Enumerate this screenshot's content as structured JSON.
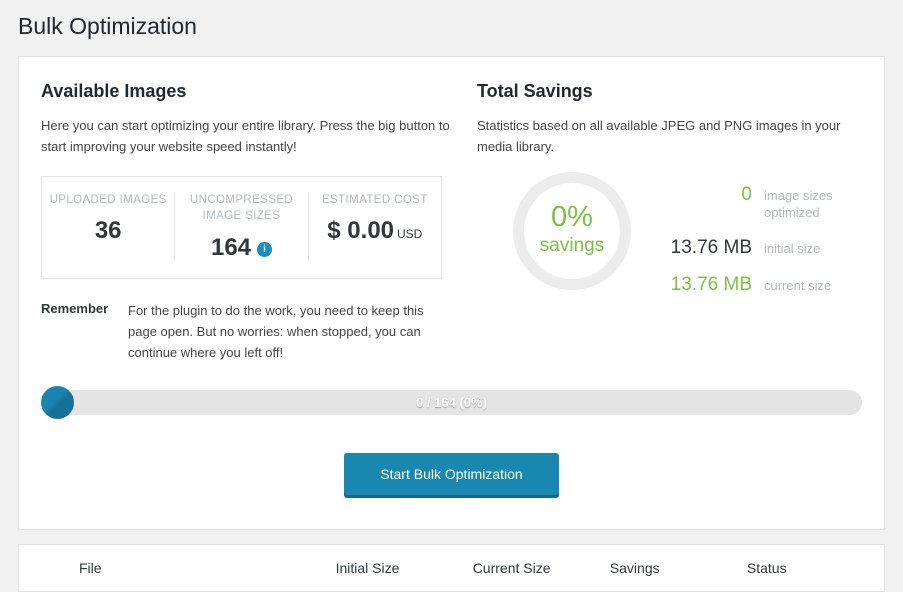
{
  "page": {
    "title": "Bulk Optimization"
  },
  "available_images": {
    "heading": "Available Images",
    "description": "Here you can start optimizing your entire library. Press the big button to start improving your website speed instantly!",
    "stats": [
      {
        "label": "UPLOADED IMAGES",
        "value": "36"
      },
      {
        "label": "UNCOMPRESSED IMAGE SIZES",
        "value": "164"
      },
      {
        "label": "ESTIMATED COST",
        "value": "$ 0.00",
        "unit": "USD"
      }
    ],
    "remember_label": "Remember",
    "remember_text": "For the plugin to do the work, you need to keep this page open. But no worries: when stopped, you can continue where you left off!"
  },
  "total_savings": {
    "heading": "Total Savings",
    "description": "Statistics based on all available JPEG and PNG images in your media library.",
    "ring": {
      "percent": "0%",
      "label": "savings"
    },
    "stats": [
      {
        "value": "0",
        "label": "image sizes optimized"
      },
      {
        "value": "13.76 MB",
        "label": "initial size"
      },
      {
        "value": "13.76 MB",
        "label": "current size"
      }
    ]
  },
  "progress": {
    "text": "0 / 164 (0%)"
  },
  "actions": {
    "start_button": "Start Bulk Optimization"
  },
  "results_table": {
    "headers": [
      "File",
      "Initial Size",
      "Current Size",
      "Savings",
      "Status"
    ]
  },
  "icons": {
    "info_glyph": "i"
  },
  "colors": {
    "accent_blue": "#1a87b0",
    "green": "#7bc143",
    "page_background": "#f1f1f1",
    "muted_label": "#b4b9be",
    "heading_text": "#23282d"
  }
}
